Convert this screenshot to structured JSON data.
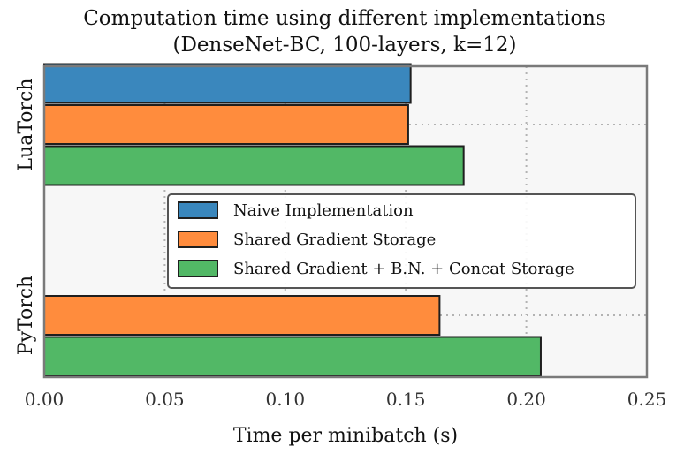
{
  "chart_data": {
    "type": "bar",
    "orientation": "horizontal",
    "title": "Computation time using different implementations",
    "subtitle": "(DenseNet-BC, 100-layers, k=12)",
    "xlabel": "Time per minibatch (s)",
    "ylabel": "",
    "xlim": [
      0.0,
      0.25
    ],
    "xticks": [
      "0.00",
      "0.05",
      "0.10",
      "0.15",
      "0.20",
      "0.25"
    ],
    "grid": true,
    "legend_position": "center-right",
    "categories": [
      "LuaTorch",
      "PyTorch"
    ],
    "series": [
      {
        "name": "Naive Implementation",
        "color": "#3a87bd",
        "values": [
          0.152,
          null
        ]
      },
      {
        "name": "Shared Gradient Storage",
        "color": "#ff8c3d",
        "values": [
          0.151,
          0.164
        ]
      },
      {
        "name": "Shared Gradient + B.N. + Concat Storage",
        "color": "#52b866",
        "values": [
          0.174,
          0.206
        ]
      }
    ]
  }
}
